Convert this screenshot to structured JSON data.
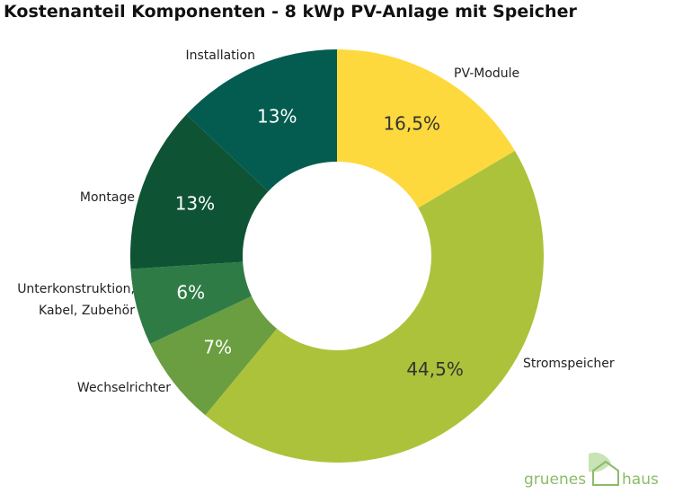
{
  "chart_data": {
    "type": "donut",
    "title": "Kostenanteil Komponenten - 8 kWp PV-Anlage mit Speicher",
    "categories": [
      "PV-Module",
      "Stromspeicher",
      "Wechselrichter",
      "Unterkonstruktion, Kabel, Zubehör",
      "Montage",
      "Installation"
    ],
    "values": [
      16.5,
      44.5,
      7,
      6,
      13,
      13
    ],
    "value_labels": [
      "16,5%",
      "44,5%",
      "7%",
      "6%",
      "13%",
      "13%"
    ],
    "colors": [
      "#fdd93e",
      "#adc23b",
      "#6a9e40",
      "#2f7b45",
      "#0e5434",
      "#045c50"
    ],
    "value_label_colors": [
      "#333333",
      "#333333",
      "#ffffff",
      "#ffffff",
      "#ffffff",
      "#ffffff"
    ]
  },
  "logo": {
    "left": "gruenes",
    "right": "haus"
  }
}
